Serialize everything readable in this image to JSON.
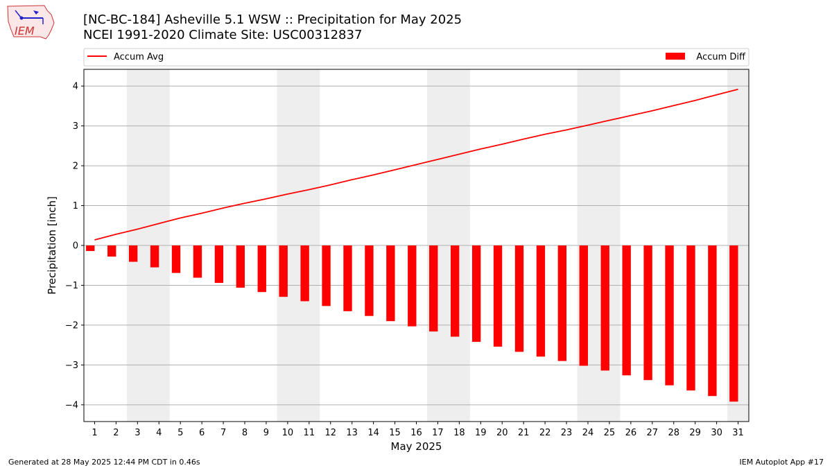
{
  "title_line1": "[NC-BC-184] Asheville 5.1 WSW :: Precipitation for May 2025",
  "title_line2": "NCEI 1991-2020 Climate Site: USC00312837",
  "logo_text": "IEM",
  "footer_left": "Generated at 28 May 2025 12:44 PM CDT in 0.46s",
  "footer_right": "IEM Autoplot App #17",
  "chart_data": {
    "type": "bar",
    "xlabel": "May 2025",
    "ylabel": "Precipitation [inch]",
    "ylim": [
      -4.42,
      4.42
    ],
    "yticks": [
      -4,
      -3,
      -2,
      -1,
      0,
      1,
      2,
      3,
      4
    ],
    "ytick_labels": [
      "−4",
      "−3",
      "−2",
      "−1",
      "0",
      "1",
      "2",
      "3",
      "4"
    ],
    "grid": "horizontal",
    "legend_placement": "top, outside plot",
    "weekend_shading_days": [
      3,
      4,
      10,
      11,
      17,
      18,
      24,
      25,
      31
    ],
    "categories": [
      "1",
      "2",
      "3",
      "4",
      "5",
      "6",
      "7",
      "8",
      "9",
      "10",
      "11",
      "12",
      "13",
      "14",
      "15",
      "16",
      "17",
      "18",
      "19",
      "20",
      "21",
      "22",
      "23",
      "24",
      "25",
      "26",
      "27",
      "28",
      "29",
      "30",
      "31"
    ],
    "series": [
      {
        "name": "Accum Avg",
        "kind": "line",
        "color": "#ff0000",
        "values": [
          0.14,
          0.28,
          0.41,
          0.55,
          0.69,
          0.81,
          0.94,
          1.06,
          1.17,
          1.29,
          1.4,
          1.52,
          1.65,
          1.77,
          1.9,
          2.03,
          2.16,
          2.29,
          2.42,
          2.54,
          2.67,
          2.79,
          2.9,
          3.02,
          3.14,
          3.26,
          3.38,
          3.51,
          3.64,
          3.78,
          3.92
        ]
      },
      {
        "name": "Accum Diff",
        "kind": "bar",
        "color": "#ff0000",
        "values": [
          -0.14,
          -0.28,
          -0.41,
          -0.55,
          -0.69,
          -0.81,
          -0.94,
          -1.06,
          -1.17,
          -1.29,
          -1.4,
          -1.52,
          -1.65,
          -1.77,
          -1.9,
          -2.03,
          -2.16,
          -2.29,
          -2.42,
          -2.54,
          -2.67,
          -2.79,
          -2.9,
          -3.02,
          -3.14,
          -3.26,
          -3.38,
          -3.51,
          -3.64,
          -3.78,
          -3.92
        ]
      }
    ]
  }
}
